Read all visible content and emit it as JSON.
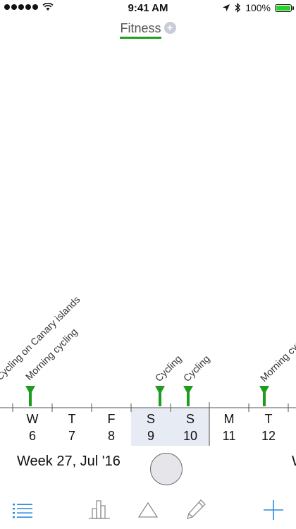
{
  "status_bar": {
    "time": "9:41 AM",
    "battery": "100%",
    "signal_icon": "signal-dots-icon",
    "wifi_icon": "wifi-icon",
    "location_icon": "location-arrow-icon",
    "bluetooth_icon": "bluetooth-icon",
    "battery_icon": "battery-icon"
  },
  "header": {
    "title": "Fitness",
    "add_icon": "add-circle-icon",
    "accent": "#20a020"
  },
  "timeline": {
    "days": [
      {
        "letter": "W",
        "num": "6"
      },
      {
        "letter": "T",
        "num": "7"
      },
      {
        "letter": "F",
        "num": "8"
      },
      {
        "letter": "S",
        "num": "9",
        "highlight": true
      },
      {
        "letter": "S",
        "num": "10",
        "highlight": true
      },
      {
        "letter": "M",
        "num": "11"
      },
      {
        "letter": "T",
        "num": "12"
      }
    ],
    "events": [
      {
        "label": "Cycling on Canary islands",
        "day": "6"
      },
      {
        "label": "Morning cycling",
        "day": "6"
      },
      {
        "label": "Cycling",
        "day": "9"
      },
      {
        "label": "Cycling",
        "day": "10"
      },
      {
        "label": "Morning cycling",
        "day": "12"
      }
    ],
    "marker_color": "#1f9b1f",
    "highlight_color": "#e7ebf3"
  },
  "footer": {
    "week_label": "Week 27, Jul '16",
    "next_week_label": "W"
  },
  "tab_bar": {
    "accent": "#2a8be0",
    "inactive": "#8e8e93",
    "tabs": [
      {
        "name": "list",
        "icon": "list-icon"
      },
      {
        "name": "stats",
        "icon": "bar-chart-icon"
      },
      {
        "name": "triangle",
        "icon": "triangle-icon"
      },
      {
        "name": "edit",
        "icon": "pencil-icon"
      },
      {
        "name": "add",
        "icon": "plus-icon"
      }
    ]
  }
}
